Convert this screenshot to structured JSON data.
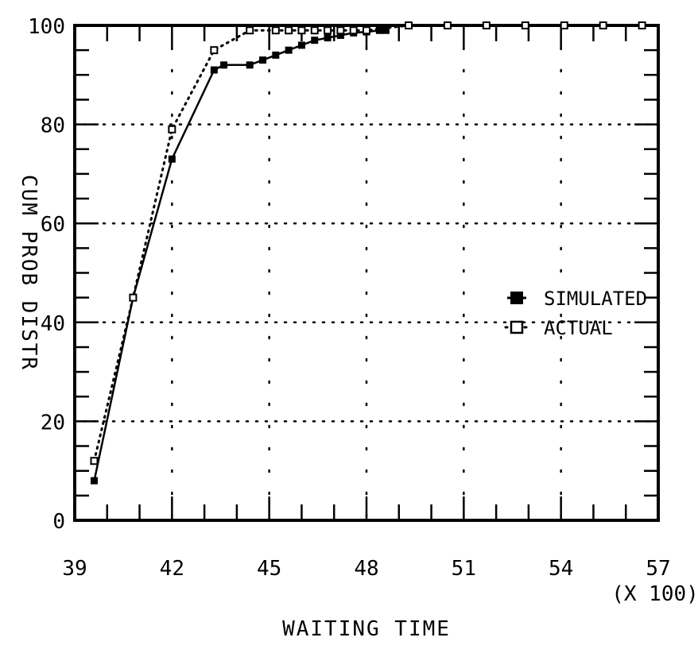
{
  "chart_data": {
    "type": "line",
    "title": "",
    "xlabel": "WAITING TIME",
    "ylabel": "CUM PROB DISTR",
    "x_multiplier_label": "(X 100)",
    "xlim": [
      39,
      57
    ],
    "ylim": [
      0,
      100
    ],
    "x_ticks": [
      39,
      42,
      45,
      48,
      51,
      54,
      57
    ],
    "y_ticks": [
      0,
      20,
      40,
      60,
      80,
      100
    ],
    "grid": true,
    "legend_position": "center-right",
    "series": [
      {
        "name": "SIMULATED",
        "marker": "filled-square",
        "line_style": "solid",
        "x": [
          39.6,
          40.8,
          42.0,
          43.3,
          43.6,
          44.4,
          44.8,
          45.2,
          45.6,
          46.0,
          46.4,
          46.8,
          47.2,
          47.6,
          48.0,
          48.4,
          48.6
        ],
        "y": [
          8,
          45,
          73,
          91,
          92,
          92,
          93,
          94,
          95,
          96,
          97,
          97.5,
          98,
          98.5,
          98.7,
          99,
          99
        ]
      },
      {
        "name": "ACTUAL",
        "marker": "open-square",
        "line_style": "dotted",
        "x": [
          39.6,
          40.8,
          42.0,
          43.3,
          44.4,
          45.2,
          45.6,
          46.0,
          46.4,
          46.8,
          47.2,
          47.6,
          48.0,
          49.3,
          50.5,
          51.7,
          52.9,
          54.1,
          55.3,
          56.5
        ],
        "y": [
          12,
          45,
          79,
          95,
          99,
          99,
          99,
          99,
          99,
          99,
          99,
          99,
          99,
          100,
          100,
          100,
          100,
          100,
          100,
          100
        ]
      }
    ]
  }
}
